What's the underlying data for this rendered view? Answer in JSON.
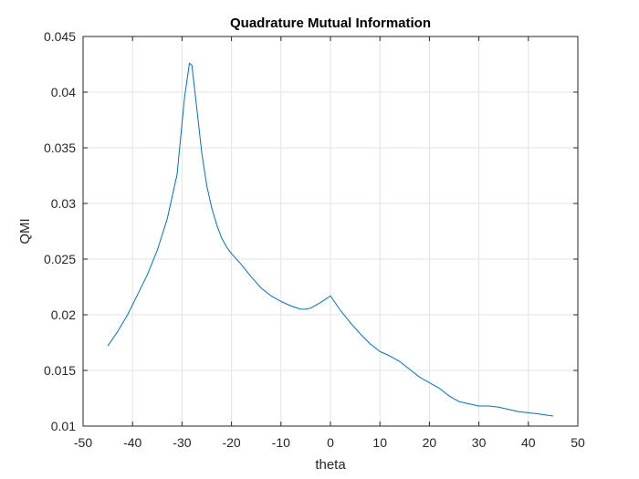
{
  "chart_data": {
    "type": "line",
    "title": "Quadrature Mutual Information",
    "xlabel": "theta",
    "ylabel": "QMI",
    "xlim": [
      -50,
      50
    ],
    "ylim": [
      0.01,
      0.045
    ],
    "xticks": [
      -50,
      -40,
      -30,
      -20,
      -10,
      0,
      10,
      20,
      30,
      40,
      50
    ],
    "xtick_labels": [
      "-50",
      "-40",
      "-30",
      "-20",
      "-10",
      "0",
      "10",
      "20",
      "30",
      "40",
      "50"
    ],
    "yticks": [
      0.01,
      0.015,
      0.02,
      0.025,
      0.03,
      0.035,
      0.04,
      0.045
    ],
    "ytick_labels": [
      "0.01",
      "0.015",
      "0.02",
      "0.025",
      "0.03",
      "0.035",
      "0.04",
      "0.045"
    ],
    "grid": true,
    "series": [
      {
        "color": "#0072BD",
        "x": [
          -45,
          -43,
          -41,
          -39,
          -37,
          -35,
          -33,
          -31,
          -29.5,
          -28.5,
          -28,
          -27,
          -26,
          -25,
          -24,
          -23,
          -22,
          -21,
          -20,
          -18,
          -16,
          -14,
          -12,
          -10,
          -8,
          -6,
          -5,
          -4,
          -2,
          0,
          2,
          4,
          6,
          8,
          10,
          12,
          14,
          16,
          18,
          20,
          22,
          24,
          26,
          28,
          30,
          32,
          34,
          36,
          38,
          40,
          42,
          45
        ],
        "y": [
          0.0172,
          0.0185,
          0.02,
          0.0218,
          0.0236,
          0.0258,
          0.0286,
          0.0326,
          0.0395,
          0.0426,
          0.0424,
          0.0385,
          0.0345,
          0.0316,
          0.0296,
          0.0281,
          0.0269,
          0.0261,
          0.0255,
          0.0245,
          0.0234,
          0.0224,
          0.0217,
          0.0212,
          0.0208,
          0.0205,
          0.0205,
          0.0206,
          0.0211,
          0.0217,
          0.0204,
          0.0193,
          0.0183,
          0.0174,
          0.0167,
          0.0163,
          0.0158,
          0.0151,
          0.0144,
          0.0139,
          0.0134,
          0.0127,
          0.0122,
          0.012,
          0.0118,
          0.0118,
          0.0117,
          0.0115,
          0.0113,
          0.0112,
          0.0111,
          0.0109
        ]
      }
    ]
  }
}
